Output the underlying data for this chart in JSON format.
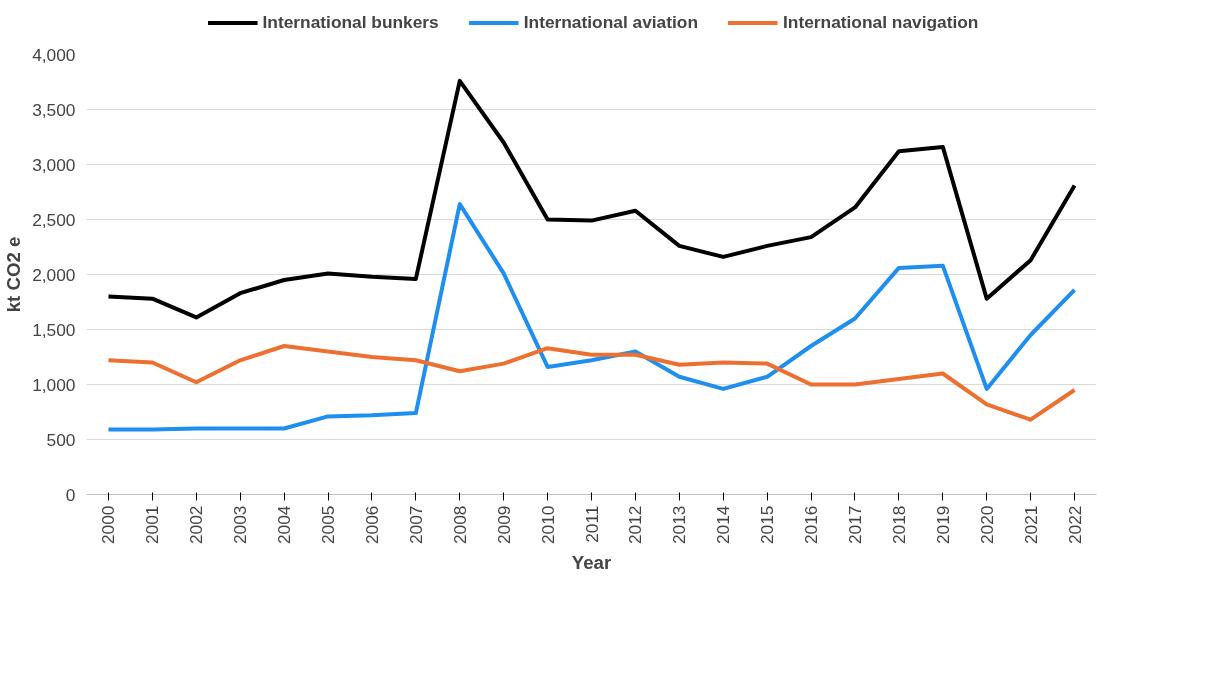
{
  "chart_data": {
    "type": "line",
    "xlabel": "Year",
    "ylabel": "kt CO2 e",
    "categories": [
      "2000",
      "2001",
      "2002",
      "2003",
      "2004",
      "2005",
      "2006",
      "2007",
      "2008",
      "2009",
      "2010",
      "2011",
      "2012",
      "2013",
      "2014",
      "2015",
      "2016",
      "2017",
      "2018",
      "2019",
      "2020",
      "2021",
      "2022"
    ],
    "series": [
      {
        "name": "International bunkers",
        "color": "#000000",
        "values": [
          1800,
          1780,
          1610,
          1830,
          1950,
          2010,
          1980,
          1960,
          3760,
          3200,
          2500,
          2490,
          2580,
          2260,
          2160,
          2260,
          2340,
          2610,
          3120,
          3160,
          1780,
          2130,
          2810
        ]
      },
      {
        "name": "International aviation",
        "color": "#1f8fef",
        "values": [
          590,
          590,
          600,
          600,
          600,
          710,
          720,
          740,
          2640,
          2010,
          1160,
          1220,
          1300,
          1070,
          960,
          1070,
          1350,
          1600,
          2060,
          2080,
          960,
          1450,
          1860
        ]
      },
      {
        "name": "International navigation",
        "color": "#ed7030",
        "values": [
          1220,
          1200,
          1020,
          1220,
          1350,
          1300,
          1250,
          1220,
          1120,
          1190,
          1330,
          1270,
          1270,
          1180,
          1200,
          1190,
          1000,
          1000,
          1050,
          1100,
          820,
          680,
          950
        ]
      }
    ],
    "ylim": [
      0,
      4000
    ],
    "yticks": [
      {
        "value": 0,
        "label": "0"
      },
      {
        "value": 500,
        "label": "500"
      },
      {
        "value": 1000,
        "label": "1,000"
      },
      {
        "value": 1500,
        "label": "1,500"
      },
      {
        "value": 2000,
        "label": "2,000"
      },
      {
        "value": 2500,
        "label": "2,500"
      },
      {
        "value": 3000,
        "label": "3,000"
      },
      {
        "value": 3500,
        "label": "3,500"
      },
      {
        "value": 4000,
        "label": "4,000"
      }
    ],
    "grid": "y",
    "legend": "top",
    "marker": "none",
    "line_style": "solid"
  }
}
